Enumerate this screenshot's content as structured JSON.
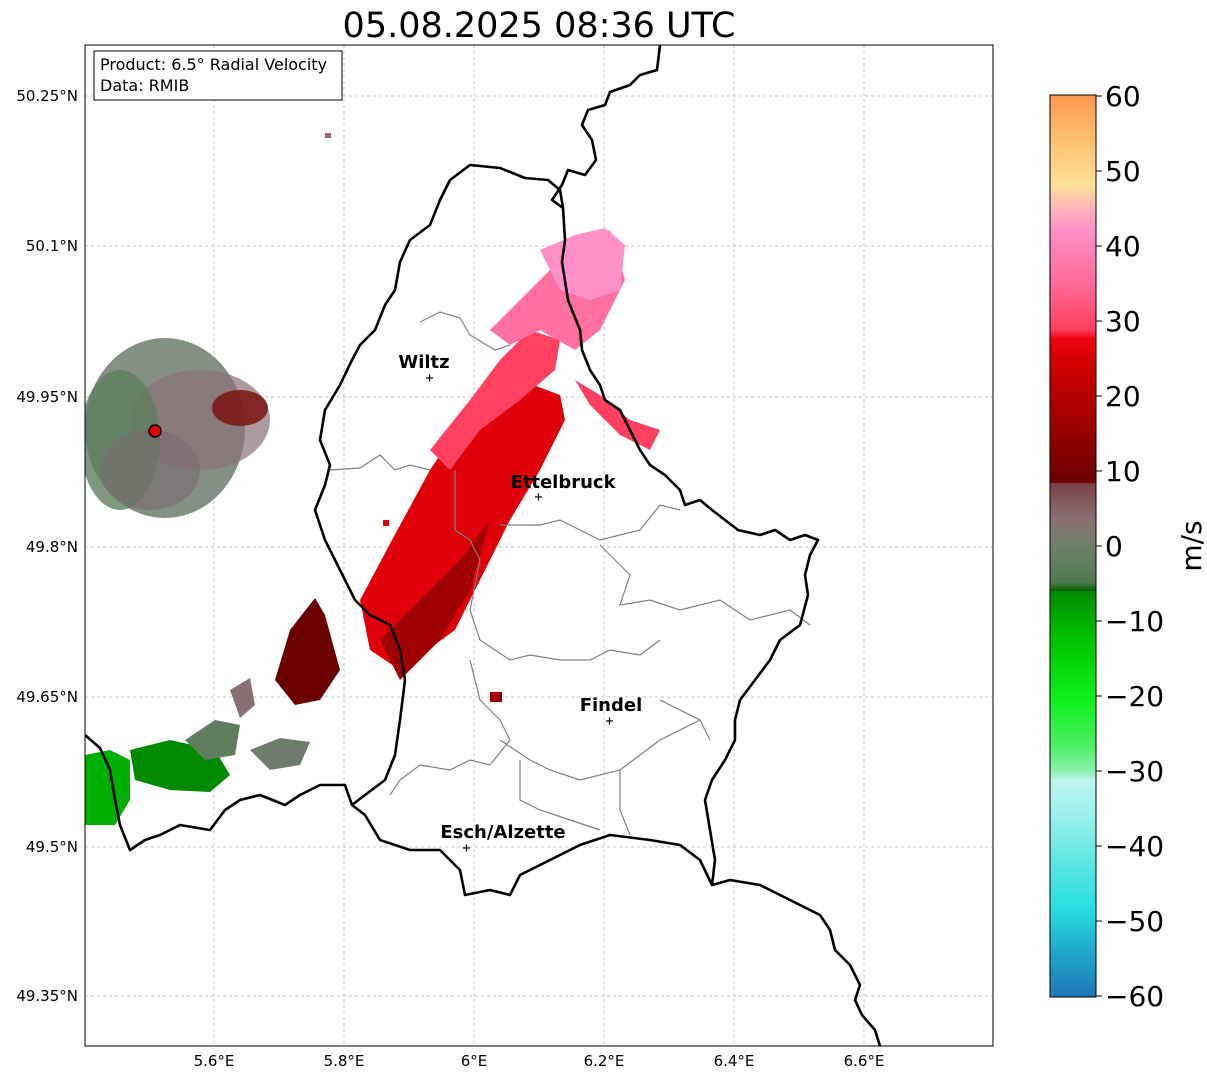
{
  "title": "05.08.2025 08:36 UTC",
  "info_box": {
    "product": "Product: 6.5° Radial Velocity",
    "data": "Data: RMIB"
  },
  "lat_ticks": [
    "50.25°N",
    "50.1°N",
    "49.95°N",
    "49.8°N",
    "49.65°N",
    "49.5°N",
    "49.35°N"
  ],
  "lon_ticks": [
    "5.6°E",
    "5.8°E",
    "6°E",
    "6.2°E",
    "6.4°E",
    "6.6°E"
  ],
  "cities": [
    {
      "name": "Wiltz"
    },
    {
      "name": "Ettelbruck"
    },
    {
      "name": "Findel"
    },
    {
      "name": "Esch/Alzette"
    }
  ],
  "colorbar": {
    "unit_label": "m/s",
    "tick_labels": [
      "60",
      "50",
      "40",
      "30",
      "20",
      "10",
      "0",
      "−10",
      "−20",
      "−30",
      "−40",
      "−50",
      "−60"
    ],
    "range": [
      -60,
      60
    ]
  },
  "colors": {
    "border": "#000000",
    "canton_lines": "#808080",
    "grid": "#b0b0b0",
    "radar_site": "#e00000"
  }
}
